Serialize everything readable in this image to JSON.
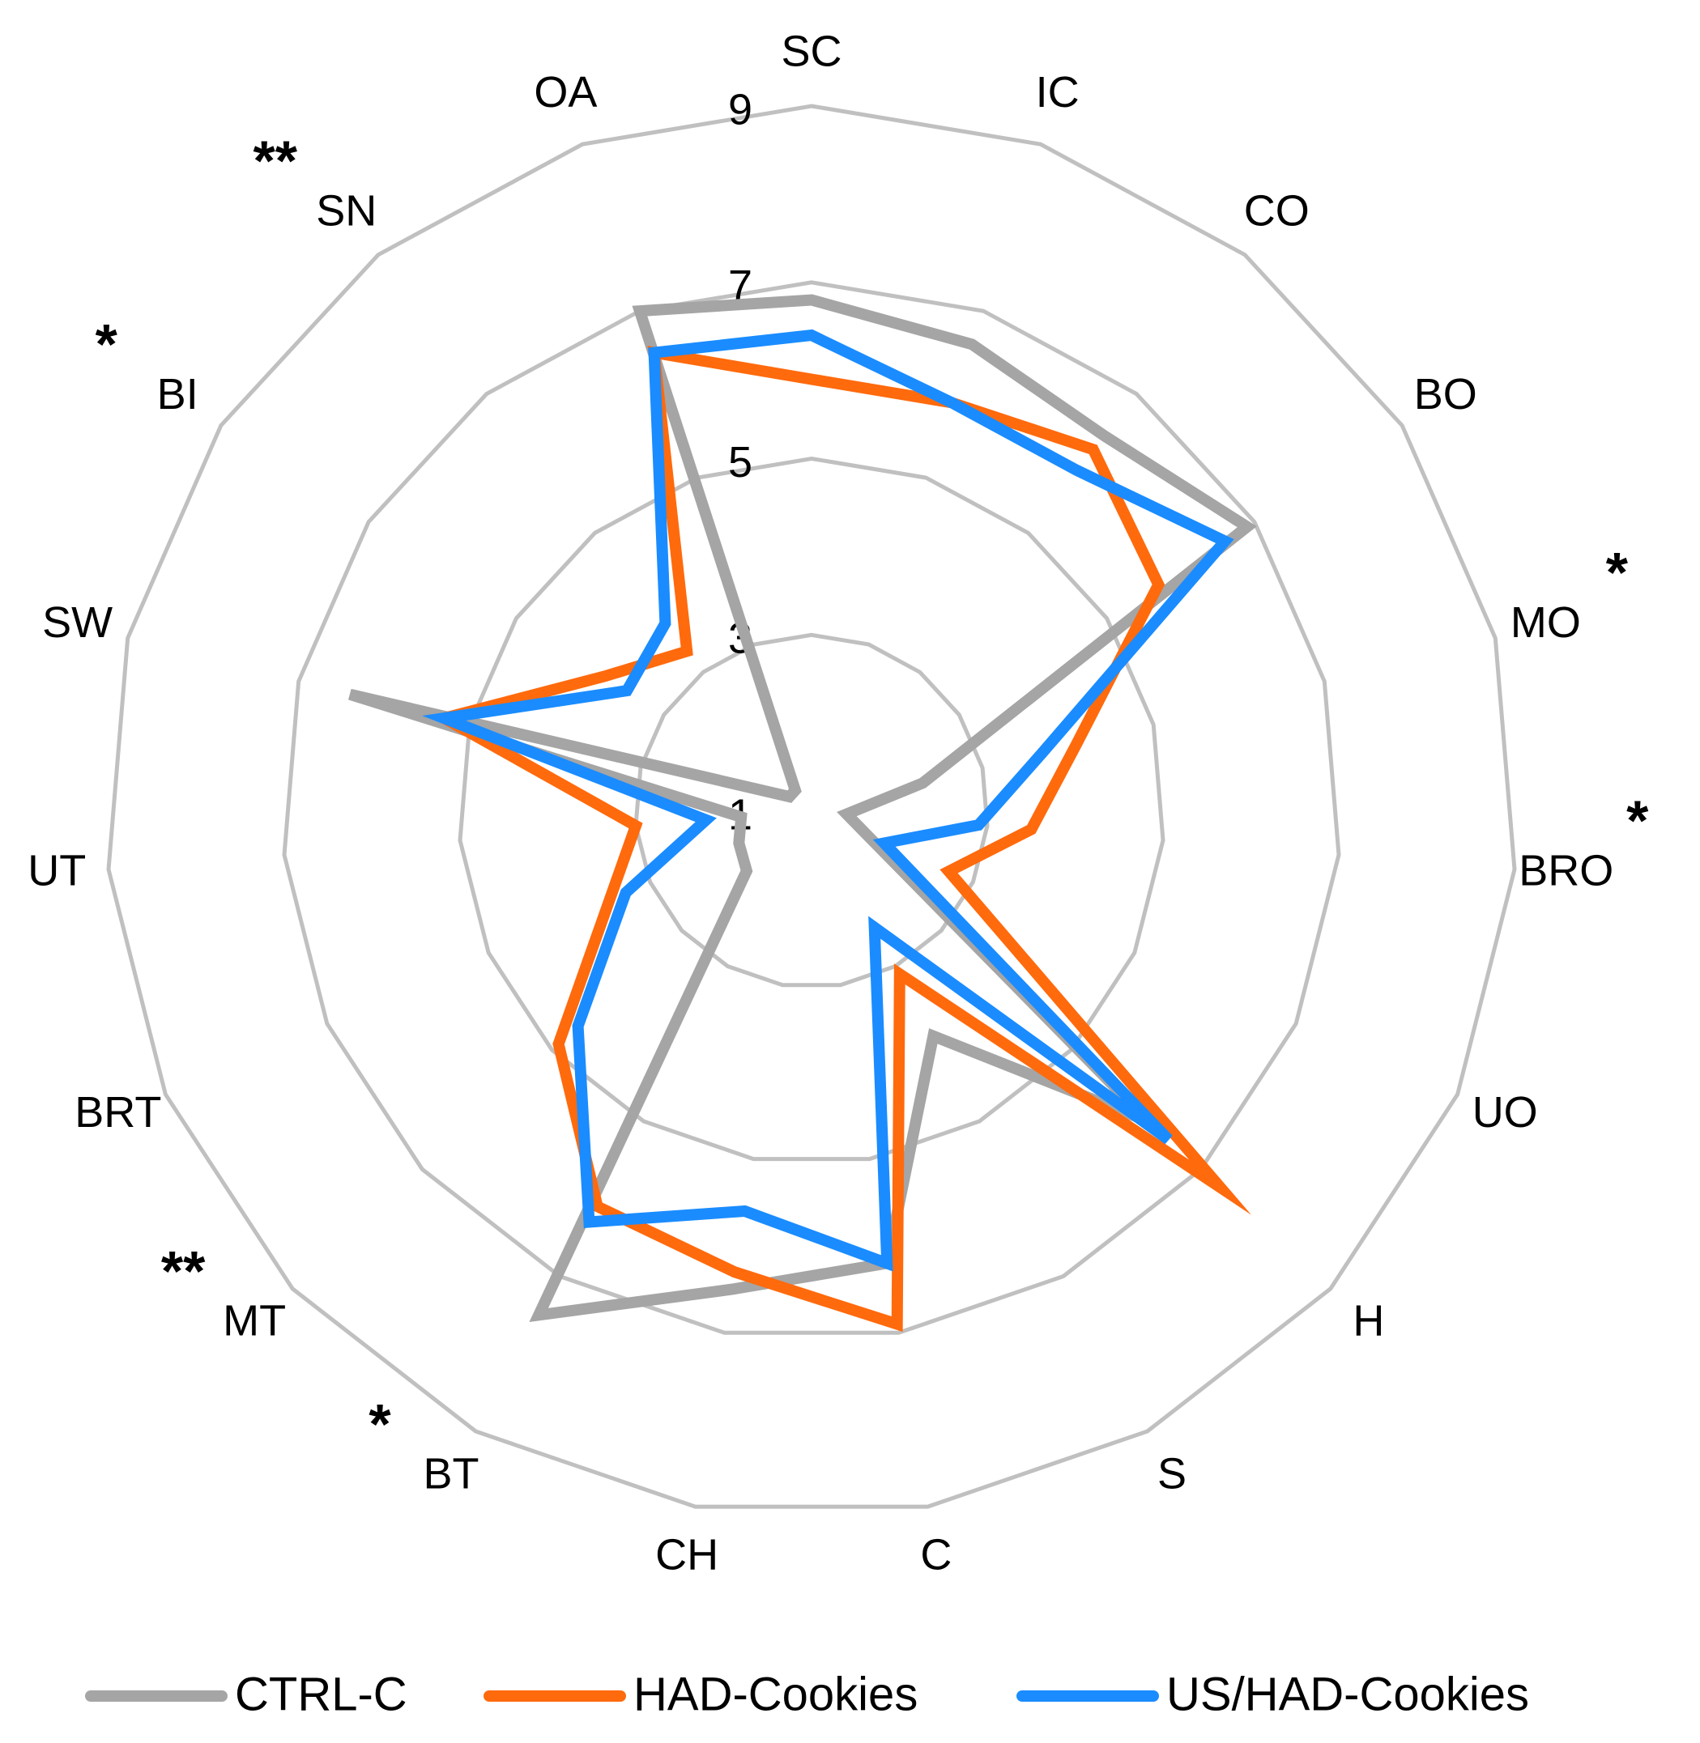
{
  "chart_data": {
    "type": "radar",
    "categories": [
      "SC",
      "IC",
      "CO",
      "BO",
      "MO",
      "BRO",
      "UO",
      "H",
      "S",
      "C",
      "CH",
      "BT",
      "MT",
      "BRT",
      "UT",
      "SW",
      "BI",
      "SN",
      "OA"
    ],
    "significance": [
      null,
      null,
      null,
      null,
      "*",
      "*",
      null,
      null,
      null,
      null,
      null,
      "*",
      "**",
      null,
      null,
      null,
      "*",
      "**",
      null
    ],
    "ylim": [
      1,
      9
    ],
    "yticks": [
      1,
      3,
      5,
      7,
      9
    ],
    "grid": true,
    "grid_color": "#c0c0c0",
    "legend": "bottom",
    "series": [
      {
        "name": "CTRL-C",
        "color": "#a5a5a5",
        "values": [
          6.8,
          6.6,
          6.4,
          6.9,
          2.3,
          1.4,
          1.7,
          6.2,
          3.9,
          6.2,
          6.5,
          7.5,
          2.0,
          1.9,
          1.8,
          6.4,
          1.3,
          1.3,
          7.0
        ]
      },
      {
        "name": "HAD-Cookies",
        "color": "#ff6a0d",
        "values": [
          5.9,
          5.9,
          6.2,
          5.7,
          4.1,
          3.5,
          2.7,
          7.3,
          3.1,
          6.9,
          6.3,
          6.1,
          4.9,
          3.5,
          3.0,
          5.3,
          3.8,
          3.3,
          6.5
        ]
      },
      {
        "name": "US/HAD-Cookies",
        "color": "#1a8cff",
        "values": [
          6.4,
          5.9,
          5.9,
          6.6,
          3.7,
          2.9,
          1.9,
          6.5,
          2.5,
          6.2,
          5.6,
          6.3,
          4.6,
          3.3,
          2.2,
          5.3,
          3.5,
          3.7,
          6.5
        ]
      }
    ]
  }
}
